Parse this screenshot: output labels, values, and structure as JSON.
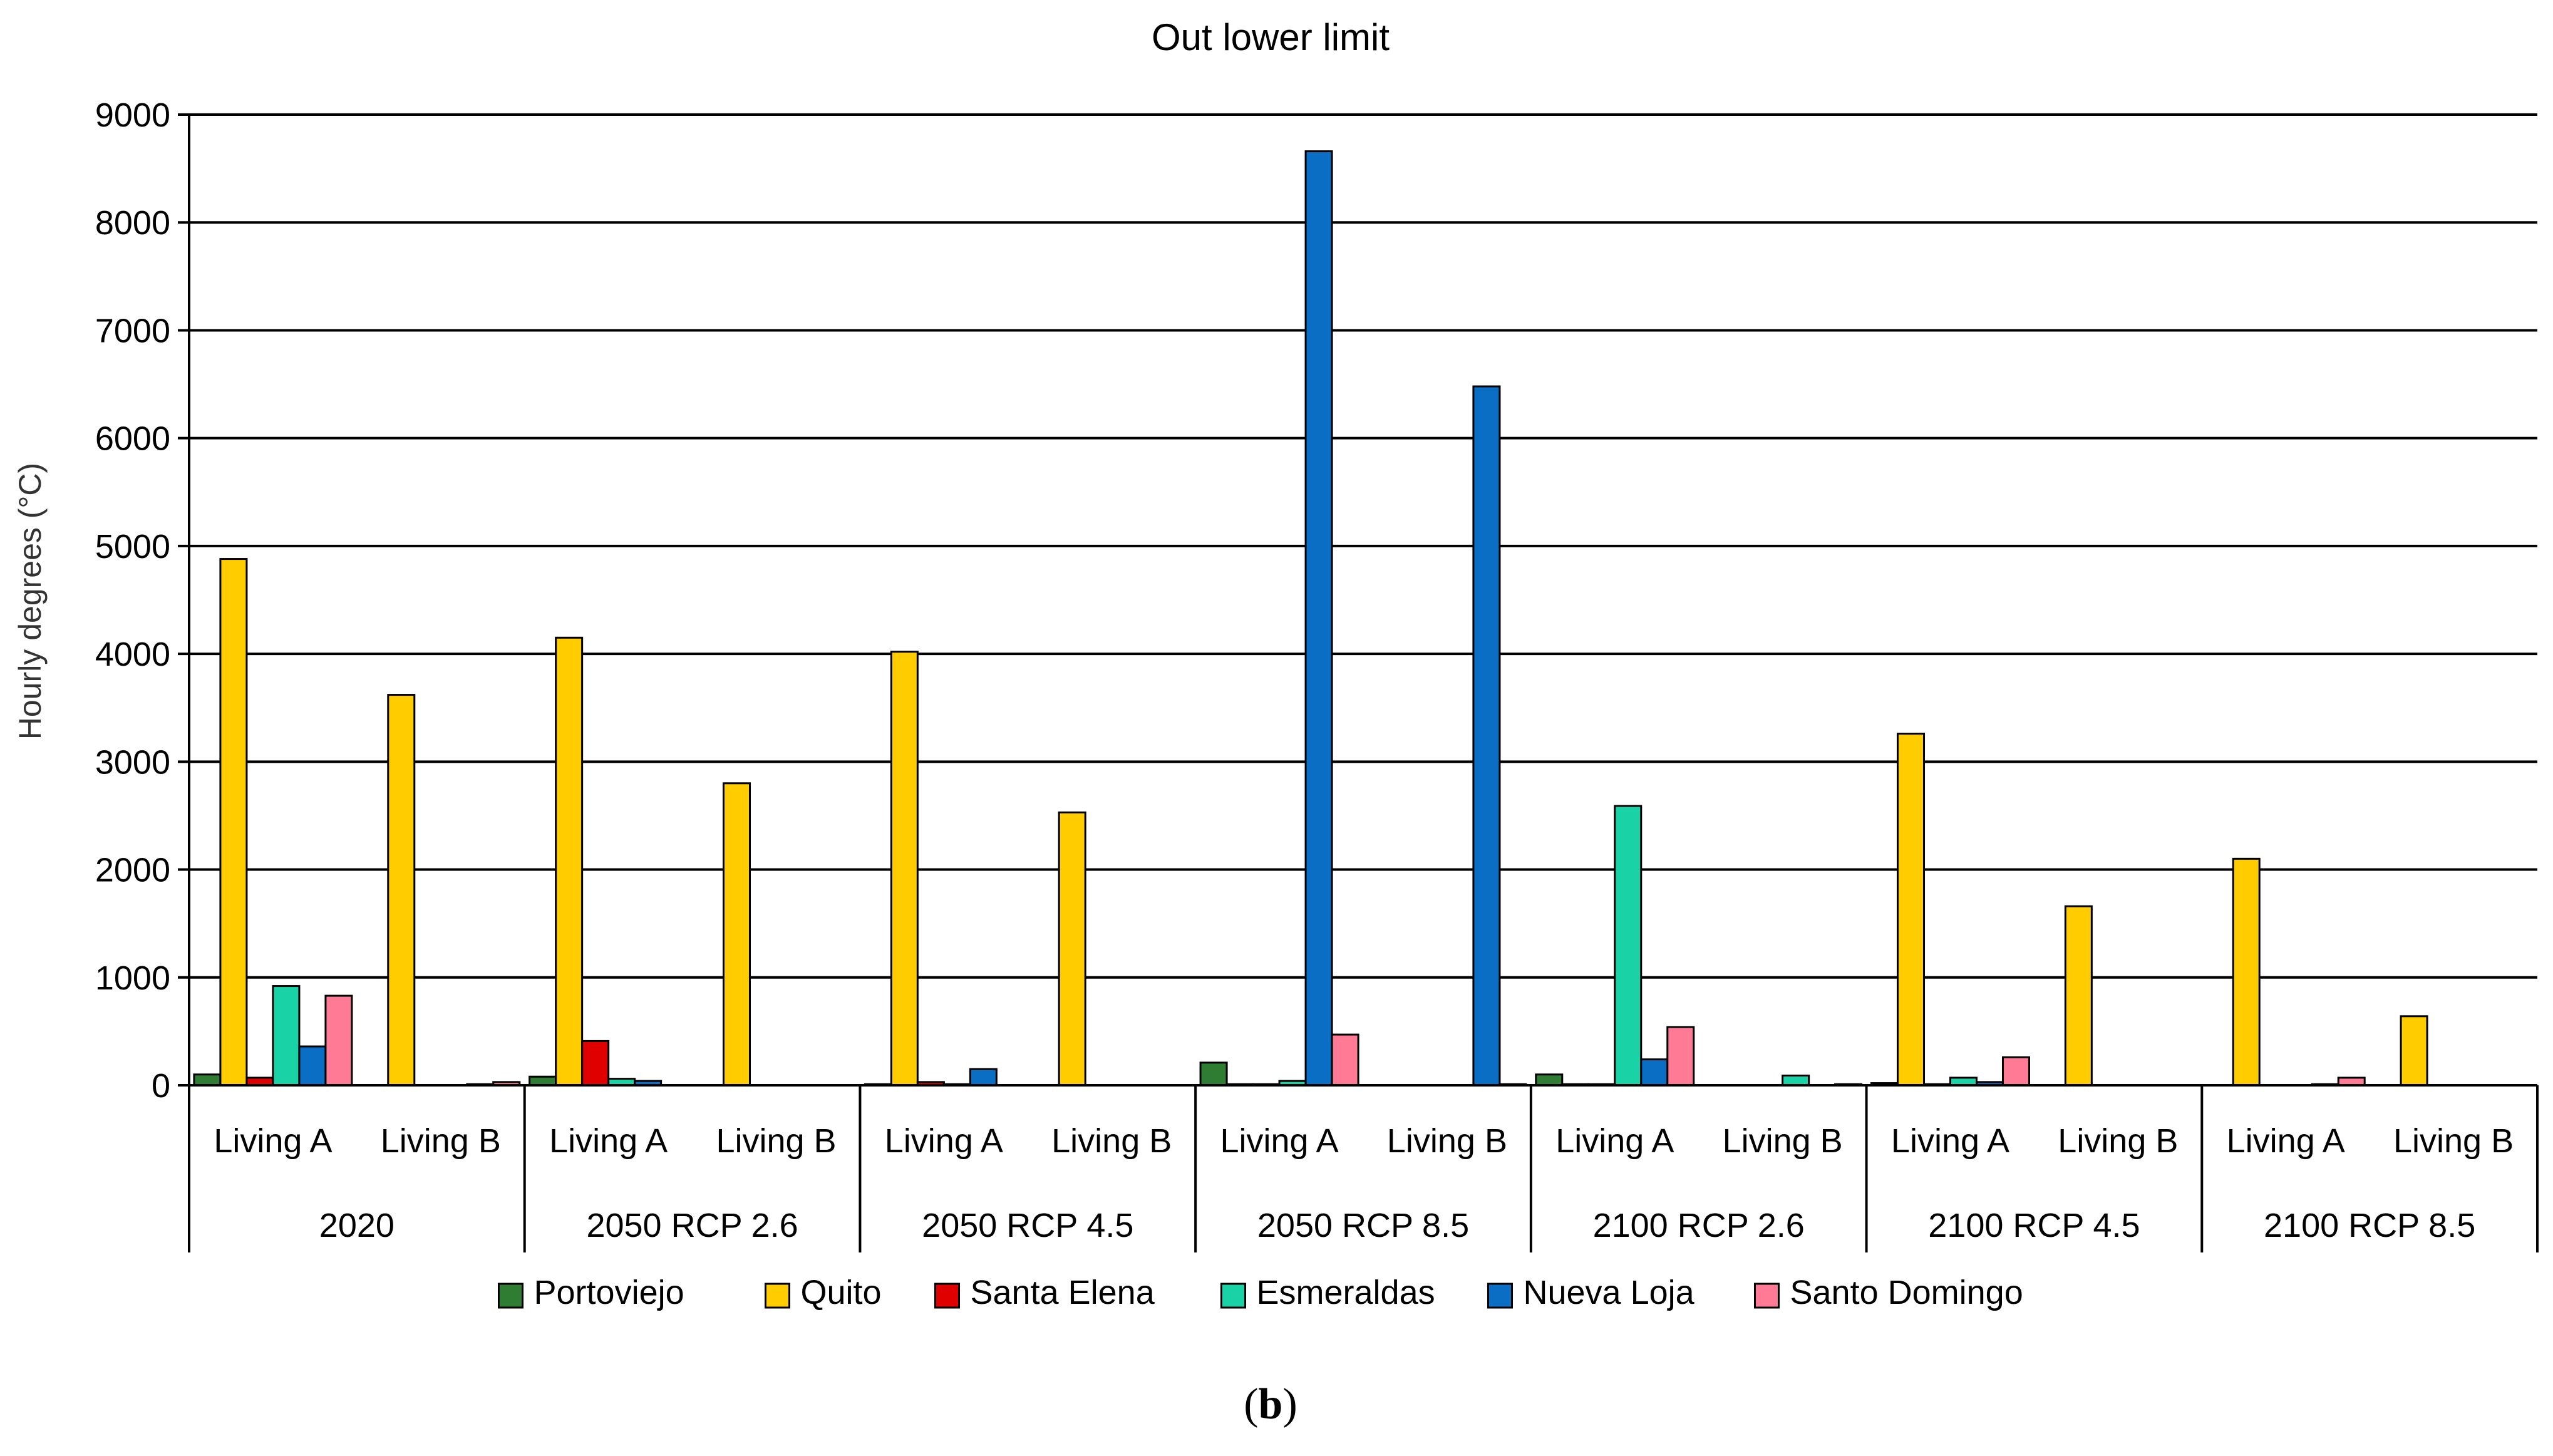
{
  "caption": {
    "open": "(",
    "letter": "b",
    "close": ")"
  },
  "chart_data": {
    "type": "bar",
    "title": "Out lower limit",
    "xlabel": "",
    "ylabel": "Hourly degrees (°C)",
    "ylim": [
      0,
      9000
    ],
    "yticks": [
      0,
      1000,
      2000,
      3000,
      4000,
      5000,
      6000,
      7000,
      8000,
      9000
    ],
    "grid": true,
    "legend_position": "bottom",
    "groups": [
      "2020",
      "2050 RCP 2.6",
      "2050 RCP 4.5",
      "2050 RCP 8.5",
      "2100 RCP 2.6",
      "2100 RCP 4.5",
      "2100 RCP 8.5"
    ],
    "subcategories": [
      "Living A",
      "Living B"
    ],
    "categories": [
      "2020 Living A",
      "2020 Living B",
      "2050 RCP 2.6 Living A",
      "2050 RCP 2.6 Living B",
      "2050 RCP 4.5 Living A",
      "2050 RCP 4.5 Living B",
      "2050 RCP 8.5 Living A",
      "2050 RCP 8.5 Living B",
      "2100 RCP 2.6 Living A",
      "2100 RCP 2.6 Living B",
      "2100 RCP 4.5 Living A",
      "2100 RCP 4.5 Living B",
      "2100 RCP 8.5 Living A",
      "2100 RCP 8.5 Living B"
    ],
    "series": [
      {
        "name": "Portoviejo",
        "color": "#2e7d32",
        "values": [
          100,
          0,
          80,
          0,
          10,
          0,
          210,
          0,
          100,
          0,
          20,
          0,
          0,
          0
        ]
      },
      {
        "name": "Quito",
        "color": "#ffcc00",
        "values": [
          4880,
          3620,
          4150,
          2800,
          4020,
          2530,
          10,
          0,
          10,
          0,
          3260,
          1660,
          2100,
          640
        ]
      },
      {
        "name": "Santa Elena",
        "color": "#e00000",
        "values": [
          70,
          0,
          410,
          0,
          30,
          0,
          10,
          0,
          10,
          0,
          10,
          0,
          0,
          0
        ]
      },
      {
        "name": "Esmeraldas",
        "color": "#19d3a6",
        "values": [
          920,
          0,
          60,
          0,
          10,
          0,
          40,
          0,
          2590,
          90,
          70,
          0,
          0,
          0
        ]
      },
      {
        "name": "Nueva Loja",
        "color": "#0a6fc4",
        "values": [
          360,
          10,
          40,
          0,
          150,
          0,
          8660,
          6480,
          240,
          0,
          30,
          0,
          10,
          0
        ]
      },
      {
        "name": "Santo Domingo",
        "color": "#ff7a95",
        "values": [
          830,
          30,
          0,
          0,
          0,
          0,
          470,
          10,
          540,
          10,
          260,
          0,
          70,
          0
        ]
      }
    ]
  }
}
